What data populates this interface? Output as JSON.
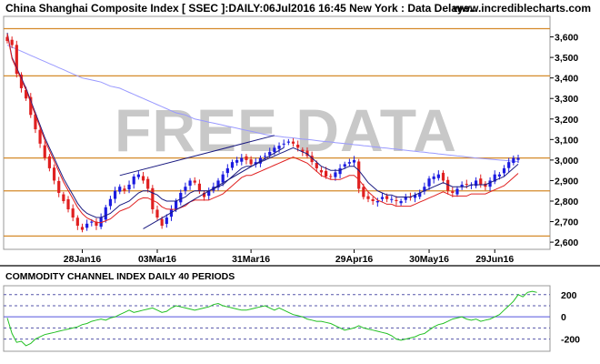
{
  "header": {
    "title": "China Shanghai Composite Index [ SSEC ]:DAILY:06Jul2016 16:45 New York : Data Delaye..",
    "site": "www.incrediblecharts.com"
  },
  "watermark": "FREE DATA",
  "colors": {
    "up_candle": "#1b1be0",
    "down_candle": "#e02020",
    "ema_fast": "#e02020",
    "ema_slow": "#1a1a80",
    "ma_long": "#9999ff",
    "level_lines": "#d58a2a",
    "trend_lines": "#1a1a80",
    "cci_line": "#22c022",
    "cci_zero": "#5555dd",
    "cci_bands": "#5555aa"
  },
  "chart_data": [
    {
      "type": "candlestick",
      "title": "China Shanghai Composite Index [ SSEC ]:DAILY:06Jul2016 16:45 New York : Data Delaye..",
      "x_ticks": [
        "28Jan16",
        "03Mar16",
        "31Mar16",
        "29Apr16",
        "30May16",
        "29Jun16"
      ],
      "y_ticks": [
        "3,600",
        "3,500",
        "3,400",
        "3,300",
        "3,200",
        "3,100",
        "3,000",
        "2,900",
        "2,800",
        "2,700",
        "2,600"
      ],
      "ylim": [
        2565,
        3700
      ],
      "grid": false,
      "horizontal_levels": [
        3640,
        3410,
        3010,
        2850,
        2630
      ],
      "series": [
        {
          "name": "",
          "values": [
            3580,
            3560,
            3420,
            3350,
            3300,
            3220,
            3150,
            3080,
            3010,
            2960,
            2900,
            2840,
            2800,
            2760,
            2720,
            2680,
            2660,
            2690,
            2700,
            2680,
            2720,
            2770,
            2810,
            2850,
            2870,
            2850,
            2880,
            2920,
            2930,
            2900,
            2860,
            2760,
            2720,
            2680,
            2720,
            2760,
            2800,
            2840,
            2870,
            2900,
            2890,
            2850,
            2820,
            2850,
            2870,
            2900,
            2930,
            2960,
            2990,
            3000,
            3010,
            3000,
            2980,
            2990,
            3010,
            3020,
            3040,
            3060,
            3070,
            3080,
            3090,
            3080,
            3060,
            3040,
            3020,
            2990,
            2960,
            2940,
            2920,
            2920,
            2940,
            2960,
            2980,
            2990,
            3000,
            2860,
            2820,
            2810,
            2800,
            2800,
            2820,
            2810,
            2810,
            2800,
            2800,
            2820,
            2820,
            2830,
            2840,
            2870,
            2910,
            2920,
            2930,
            2900,
            2850,
            2840,
            2860,
            2880,
            2880,
            2880,
            2900,
            2880,
            2870,
            2900,
            2930,
            2930,
            2960,
            2990,
            3010,
            3010
          ]
        },
        {
          "name": "",
          "values": [
            3620,
            3500,
            3450,
            3400,
            3350,
            3290,
            3230,
            3170,
            3110,
            3060,
            3010,
            2960,
            2910,
            2870,
            2830,
            2790,
            2760,
            2740,
            2730,
            2720,
            2720,
            2730,
            2740,
            2760,
            2780,
            2790,
            2800,
            2820,
            2840,
            2850,
            2850,
            2840,
            2830,
            2810,
            2800,
            2800,
            2800,
            2810,
            2820,
            2840,
            2850,
            2850,
            2850,
            2850,
            2860,
            2870,
            2880,
            2900,
            2920,
            2940,
            2960,
            2970,
            2970,
            2980,
            2990,
            3000,
            3010,
            3020,
            3030,
            3040,
            3050,
            3060,
            3050,
            3040,
            3030,
            3010,
            2990,
            2970,
            2960,
            2950,
            2950,
            2950,
            2960,
            2970,
            2970,
            2950,
            2920,
            2890,
            2870,
            2850,
            2840,
            2830,
            2830,
            2820,
            2820,
            2820,
            2820,
            2830,
            2840,
            2850,
            2860,
            2870,
            2880,
            2890,
            2880,
            2870,
            2870,
            2870,
            2870,
            2880,
            2880,
            2880,
            2880,
            2890,
            2900,
            2910,
            2920,
            2940,
            2960,
            2980
          ]
        },
        {
          "name": "",
          "values": [
            3560,
            3550,
            3540,
            3530,
            3520,
            3510,
            3500,
            3490,
            3480,
            3470,
            3460,
            3450,
            3440,
            3430,
            3420,
            3410,
            3400,
            3395,
            3390,
            3385,
            3380,
            3370,
            3360,
            3355,
            3350,
            3340,
            3330,
            3320,
            3310,
            3300,
            3290,
            3280,
            3270,
            3260,
            3250,
            3240,
            3230,
            3225,
            3220,
            3210,
            3200,
            3195,
            3190,
            3185,
            3180,
            3175,
            3170,
            3165,
            3160,
            3155,
            3150,
            3145,
            3140,
            3135,
            3130,
            3125,
            3120,
            3118,
            3115,
            3112,
            3110,
            3108,
            3105,
            3102,
            3100,
            3098,
            3095,
            3092,
            3090,
            3088,
            3085,
            3083,
            3080,
            3078,
            3075,
            3073,
            3070,
            3068,
            3065,
            3063,
            3060,
            3058,
            3055,
            3053,
            3050,
            3048,
            3045,
            3043,
            3040,
            3038,
            3035,
            3033,
            3030,
            3028,
            3025,
            3023,
            3020,
            3018,
            3015,
            3013,
            3010,
            3008,
            3006,
            3004,
            3002,
            3000,
            2998,
            2996,
            2994,
            2992
          ]
        }
      ]
    },
    {
      "type": "line",
      "title": "COMMODITY CHANNEL INDEX DAILY 40 PERIODS",
      "y_ticks": [
        "200",
        "0",
        "-200"
      ],
      "ylim": [
        -310,
        280
      ],
      "bands": [
        200,
        100,
        0,
        -100,
        -200
      ],
      "series": [
        {
          "name": "",
          "values": [
            -10,
            -150,
            -230,
            -220,
            -260,
            -240,
            -200,
            -180,
            -160,
            -150,
            -140,
            -130,
            -120,
            -110,
            -100,
            -90,
            -70,
            -60,
            -40,
            -30,
            -20,
            -30,
            -10,
            0,
            20,
            40,
            60,
            40,
            50,
            60,
            70,
            80,
            60,
            40,
            50,
            80,
            100,
            90,
            80,
            70,
            60,
            70,
            80,
            90,
            110,
            120,
            100,
            90,
            80,
            70,
            60,
            60,
            70,
            80,
            90,
            100,
            80,
            60,
            80,
            60,
            40,
            20,
            10,
            0,
            -20,
            -30,
            -40,
            -40,
            -50,
            -60,
            -80,
            -100,
            -120,
            -110,
            -100,
            -80,
            -100,
            -110,
            -120,
            -130,
            -140,
            -150,
            -170,
            -200,
            -210,
            -200,
            -190,
            -180,
            -160,
            -150,
            -120,
            -90,
            -70,
            -60,
            -40,
            -20,
            -10,
            0,
            -20,
            -30,
            -20,
            -40,
            -30,
            -20,
            0,
            20,
            60,
            100,
            140,
            200,
            180,
            220,
            230,
            220
          ]
        }
      ]
    }
  ]
}
